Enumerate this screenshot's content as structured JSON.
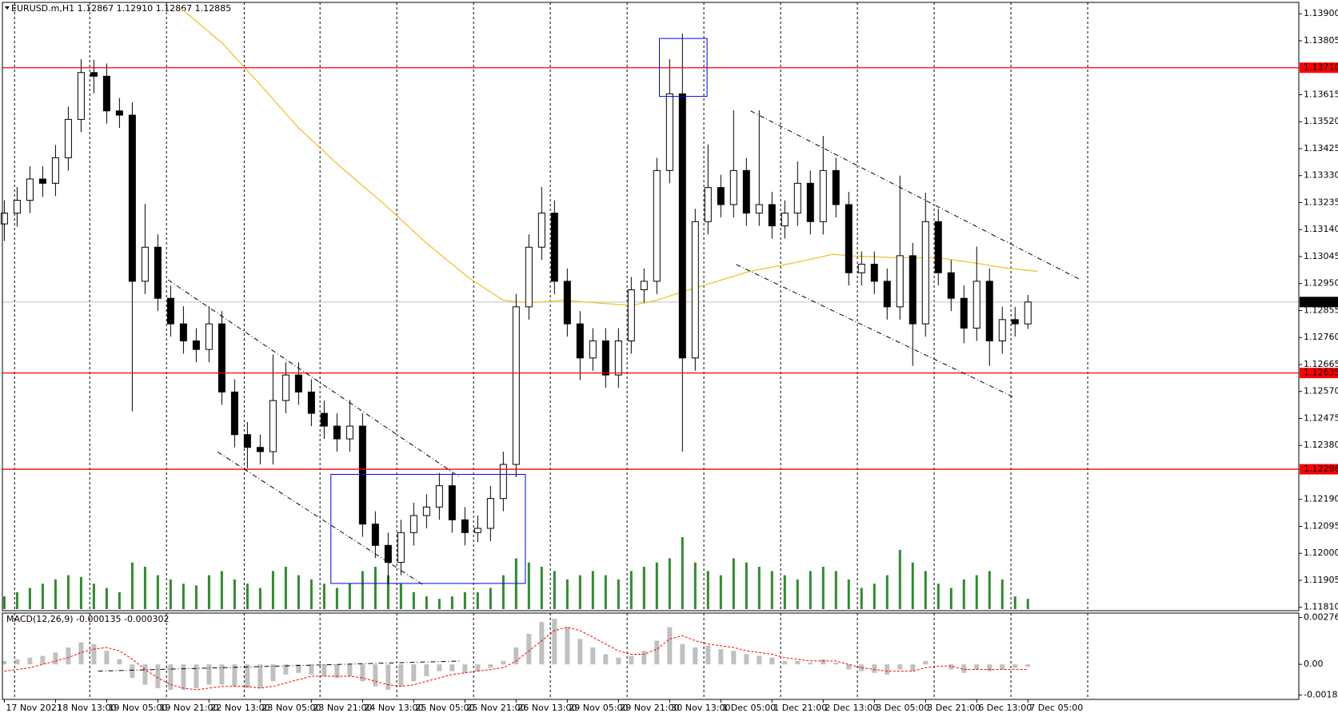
{
  "chart_data": [
    {
      "type": "candlestick",
      "title": "EURUSD.m,H1  1.12867 1.12910 1.12867 1.12885",
      "x": [
        0,
        4,
        8,
        12,
        16,
        20,
        24,
        28,
        32,
        36,
        40,
        44,
        48,
        52,
        56,
        60,
        64,
        68,
        72,
        76,
        80,
        84,
        88,
        92,
        96,
        100,
        104,
        108,
        112,
        116,
        120,
        124,
        128,
        132,
        136,
        140,
        144,
        148,
        152,
        156,
        160,
        164,
        168,
        172,
        176,
        180,
        184,
        188,
        192,
        196,
        200,
        204,
        208,
        212,
        216,
        220,
        224,
        228,
        232,
        236,
        240,
        244,
        248,
        252,
        256,
        260,
        264,
        268,
        272,
        276,
        280,
        284,
        288,
        292,
        296,
        300,
        304,
        308,
        312,
        316,
        320
      ],
      "open": [
        1.1316,
        1.13198,
        1.13243,
        1.13318,
        1.13303,
        1.13393,
        1.13528,
        1.13693,
        1.1368,
        1.13558,
        1.13543,
        1.12958,
        1.13078,
        1.12898,
        1.12808,
        1.12748,
        1.12718,
        1.12808,
        1.12568,
        1.12418,
        1.12373,
        1.12358,
        1.12538,
        1.12628,
        1.12568,
        1.12493,
        1.12448,
        1.12403,
        1.12448,
        1.12103,
        1.12028,
        1.11968,
        1.12073,
        1.12133,
        1.12163,
        1.12238,
        1.12118,
        1.12073,
        1.12088,
        1.12193,
        1.12313,
        1.12868,
        1.13078,
        1.13198,
        1.12958,
        1.12808,
        1.12688,
        1.12748,
        1.12628,
        1.12748,
        1.12928,
        1.12958,
        1.13348,
        1.13618,
        1.12688,
        1.13168,
        1.13288,
        1.13228,
        1.13348,
        1.13198,
        1.13228,
        1.13153,
        1.13198,
        1.13303,
        1.13168,
        1.13348,
        1.13228,
        1.12988,
        1.13018,
        1.12958,
        1.12868,
        1.13048,
        1.12808,
        1.13168,
        1.12988,
        1.12898,
        1.12793,
        1.12958,
        1.12748,
        1.12823,
        1.12808
      ],
      "high": [
        1.13243,
        1.1329,
        1.13363,
        1.13363,
        1.13438,
        1.13573,
        1.1374,
        1.13738,
        1.13725,
        1.13603,
        1.13588,
        1.1323,
        1.13123,
        1.12943,
        1.1287,
        1.12793,
        1.1287,
        1.12853,
        1.12613,
        1.12463,
        1.12418,
        1.127,
        1.12673,
        1.12673,
        1.12613,
        1.12538,
        1.12493,
        1.1254,
        1.12493,
        1.12148,
        1.12073,
        1.12118,
        1.12178,
        1.12208,
        1.12283,
        1.12283,
        1.12163,
        1.12133,
        1.12238,
        1.12358,
        1.12913,
        1.13123,
        1.1329,
        1.13243,
        1.13003,
        1.12853,
        1.12793,
        1.12793,
        1.12793,
        1.12973,
        1.13003,
        1.13393,
        1.1374,
        1.1383,
        1.13213,
        1.1344,
        1.13333,
        1.1356,
        1.13393,
        1.1356,
        1.13273,
        1.13243,
        1.1338,
        1.13348,
        1.1347,
        1.13393,
        1.13273,
        1.13063,
        1.13063,
        1.13003,
        1.1333,
        1.13093,
        1.1327,
        1.13213,
        1.13033,
        1.12943,
        1.1308,
        1.13003,
        1.12868,
        1.12868,
        1.1291
      ],
      "low": [
        1.131,
        1.1315,
        1.13198,
        1.13255,
        1.13258,
        1.13348,
        1.13483,
        1.1362,
        1.13513,
        1.13498,
        1.125,
        1.12913,
        1.12853,
        1.12763,
        1.12703,
        1.12673,
        1.12673,
        1.12523,
        1.12373,
        1.123,
        1.12313,
        1.12313,
        1.12493,
        1.12523,
        1.12448,
        1.12403,
        1.12358,
        1.12358,
        1.12058,
        1.11983,
        1.1189,
        1.11923,
        1.12028,
        1.12088,
        1.12118,
        1.12073,
        1.12028,
        1.1204,
        1.12043,
        1.12148,
        1.12268,
        1.12823,
        1.13033,
        1.12913,
        1.12763,
        1.1261,
        1.12643,
        1.12583,
        1.12583,
        1.12703,
        1.12883,
        1.12913,
        1.13303,
        1.12358,
        1.12643,
        1.13123,
        1.13183,
        1.13183,
        1.13153,
        1.13153,
        1.13108,
        1.13108,
        1.13153,
        1.13123,
        1.13123,
        1.13183,
        1.12943,
        1.12943,
        1.12913,
        1.12823,
        1.12823,
        1.1266,
        1.12763,
        1.12943,
        1.12853,
        1.1274,
        1.12748,
        1.1266,
        1.12703,
        1.12763,
        1.1279
      ],
      "close": [
        1.13198,
        1.13243,
        1.13318,
        1.13303,
        1.13393,
        1.13528,
        1.13693,
        1.1368,
        1.13558,
        1.13543,
        1.12958,
        1.13078,
        1.12898,
        1.12808,
        1.12748,
        1.12718,
        1.12808,
        1.12568,
        1.12418,
        1.12373,
        1.12358,
        1.12538,
        1.12628,
        1.12568,
        1.12493,
        1.12448,
        1.12403,
        1.12448,
        1.12103,
        1.12028,
        1.11968,
        1.12073,
        1.12133,
        1.12163,
        1.12238,
        1.12118,
        1.12073,
        1.12088,
        1.12193,
        1.12313,
        1.12868,
        1.13078,
        1.13198,
        1.12958,
        1.12808,
        1.12688,
        1.12748,
        1.12628,
        1.12748,
        1.12928,
        1.12958,
        1.13348,
        1.13618,
        1.12688,
        1.13168,
        1.13288,
        1.13228,
        1.13348,
        1.13198,
        1.13228,
        1.13153,
        1.13198,
        1.13303,
        1.13168,
        1.13348,
        1.13228,
        1.12988,
        1.13018,
        1.12958,
        1.12868,
        1.13048,
        1.12808,
        1.13168,
        1.12988,
        1.12898,
        1.12793,
        1.12958,
        1.12748,
        1.12823,
        1.12808,
        1.12885
      ],
      "bull_color": "#ffffff",
      "bear_color": "#000000",
      "volume": [
        15,
        20,
        25,
        30,
        35,
        40,
        38,
        30,
        25,
        20,
        55,
        50,
        40,
        35,
        30,
        28,
        40,
        45,
        35,
        30,
        25,
        45,
        50,
        40,
        35,
        30,
        25,
        30,
        45,
        50,
        40,
        30,
        20,
        15,
        12,
        15,
        20,
        20,
        25,
        40,
        60,
        55,
        50,
        45,
        35,
        40,
        45,
        40,
        35,
        45,
        50,
        55,
        60,
        85,
        55,
        45,
        40,
        60,
        55,
        50,
        45,
        40,
        35,
        45,
        50,
        45,
        35,
        25,
        30,
        40,
        70,
        55,
        45,
        30,
        25,
        35,
        40,
        45,
        35,
        15,
        12
      ],
      "volume_color": "#2e8b2e",
      "ma": {
        "x": [
          54.7,
          68,
          79,
          92,
          105,
          119,
          132,
          145,
          156,
          164,
          175,
          185,
          196,
          204,
          212,
          220,
          233,
          247,
          259,
          265,
          279,
          292,
          303,
          313,
          323
        ],
        "values": [
          1.13924,
          1.13798,
          1.13663,
          1.13498,
          1.13362,
          1.13227,
          1.13092,
          1.12972,
          1.12891,
          1.12882,
          1.12891,
          1.12882,
          1.12873,
          1.12891,
          1.12921,
          1.12948,
          1.12993,
          1.13023,
          1.13053,
          1.13047,
          1.13041,
          1.13041,
          1.13023,
          1.13005,
          1.12993
        ],
        "color": "#f2c230"
      },
      "hlines": [
        {
          "value": 1.1371,
          "label": "1.13710"
        },
        {
          "value": 1.12635,
          "label": "1.12635"
        },
        {
          "value": 1.12296,
          "label": "1.12296"
        }
      ],
      "hline_color": "#ff0000",
      "last_price": {
        "value": 1.12885,
        "label": "1.12885"
      },
      "trendlines": [
        {
          "x": [
            51.2,
            142.7
          ],
          "y": [
            1.12963,
            1.12266
          ]
        },
        {
          "x": [
            66.7,
            130.7
          ],
          "y": [
            1.12357,
            1.11891
          ]
        },
        {
          "x": [
            233.3,
            336
          ],
          "y": [
            1.13558,
            1.12966
          ]
        },
        {
          "x": [
            228.8,
            315.2
          ],
          "y": [
            1.13017,
            1.12552
          ]
        }
      ],
      "rectangles": [
        {
          "x": [
            102.1,
            162.9
          ],
          "y": [
            1.12278,
            1.11894
          ]
        },
        {
          "x": [
            204.8,
            219.7
          ],
          "y": [
            1.13813,
            1.13609
          ]
        }
      ],
      "rect_color": "#0000ff",
      "xlim": [
        -0.6,
        404.7
      ],
      "xticks": [
        {
          "value": 0,
          "label": "17 Nov 2021"
        },
        {
          "value": 16,
          "label": "18 Nov 13:00"
        },
        {
          "value": 32,
          "label": "19 Nov 05:00"
        },
        {
          "value": 48,
          "label": "19 Nov 21:00"
        },
        {
          "value": 64,
          "label": "22 Nov 13:00"
        },
        {
          "value": 80,
          "label": "23 Nov 05:00"
        },
        {
          "value": 96,
          "label": "23 Nov 21:00"
        },
        {
          "value": 112,
          "label": "24 Nov 13:00"
        },
        {
          "value": 128,
          "label": "25 Nov 05:00"
        },
        {
          "value": 144,
          "label": "25 Nov 21:00"
        },
        {
          "value": 160,
          "label": "26 Nov 13:00"
        },
        {
          "value": 176,
          "label": "29 Nov 05:00"
        },
        {
          "value": 192,
          "label": "29 Nov 21:00"
        },
        {
          "value": 208,
          "label": "30 Nov 13:00"
        },
        {
          "value": 224,
          "label": "1 Dec 05:00"
        },
        {
          "value": 240,
          "label": "1 Dec 21:00"
        },
        {
          "value": 256,
          "label": "2 Dec 13:00"
        },
        {
          "value": 272,
          "label": "3 Dec 05:00"
        },
        {
          "value": 288,
          "label": "3 Dec 21:00"
        },
        {
          "value": 304,
          "label": "6 Dec 13:00"
        },
        {
          "value": 320,
          "label": "7 Dec 05:00"
        }
      ],
      "xgrid": [
        3.2,
        26.7,
        50.7,
        75,
        98.7,
        122.7,
        146.7,
        170.7,
        194.7,
        218.7,
        242.7,
        266.7,
        290.7,
        314.7,
        338.7
      ],
      "ylim": [
        1.11798,
        1.1394
      ],
      "yticks": [
        {
          "value": 1.139,
          "label": "1.13900"
        },
        {
          "value": 1.13805,
          "label": "1.13805"
        },
        {
          "value": 1.13615,
          "label": "1.13615"
        },
        {
          "value": 1.1352,
          "label": "1.13520"
        },
        {
          "value": 1.13425,
          "label": "1.13425"
        },
        {
          "value": 1.1333,
          "label": "1.13330"
        },
        {
          "value": 1.13235,
          "label": "1.13235"
        },
        {
          "value": 1.1314,
          "label": "1.13140"
        },
        {
          "value": 1.13045,
          "label": "1.13045"
        },
        {
          "value": 1.1295,
          "label": "1.12950"
        },
        {
          "value": 1.12855,
          "label": "1.12855"
        },
        {
          "value": 1.1276,
          "label": "1.12760"
        },
        {
          "value": 1.12665,
          "label": "1.12665"
        },
        {
          "value": 1.1257,
          "label": "1.12570"
        },
        {
          "value": 1.12475,
          "label": "1.12475"
        },
        {
          "value": 1.1238,
          "label": "1.12380"
        },
        {
          "value": 1.1219,
          "label": "1.12190"
        },
        {
          "value": 1.12095,
          "label": "1.12095"
        },
        {
          "value": 1.12,
          "label": "1.12000"
        },
        {
          "value": 1.11905,
          "label": "1.11905"
        },
        {
          "value": 1.1181,
          "label": "1.11810"
        }
      ],
      "grid": true
    },
    {
      "type": "macd",
      "title": "MACD(12,26,9) -0.000135 -0.000302",
      "histogram": [
        0.0002,
        0.0003,
        0.0004,
        0.0005,
        0.0007,
        0.001,
        0.0013,
        0.0012,
        0.0008,
        0.0003,
        -0.0008,
        -0.0012,
        -0.0014,
        -0.0015,
        -0.0015,
        -0.0014,
        -0.0012,
        -0.0012,
        -0.0013,
        -0.0014,
        -0.0014,
        -0.001,
        -0.0006,
        -0.0005,
        -0.0006,
        -0.0007,
        -0.0008,
        -0.0007,
        -0.001,
        -0.0013,
        -0.0015,
        -0.0013,
        -0.001,
        -0.0007,
        -0.0004,
        -0.0004,
        -0.0005,
        -0.0004,
        -0.0002,
        0.0002,
        0.001,
        0.0018,
        0.0025,
        0.0027,
        0.0022,
        0.0015,
        0.001,
        0.0006,
        0.0004,
        0.0005,
        0.0008,
        0.0014,
        0.0022,
        0.0012,
        0.001,
        0.0011,
        0.0009,
        0.0008,
        0.0006,
        0.0005,
        0.0004,
        0.0002,
        0.0002,
        0.0001,
        0.0003,
        0.0001,
        -0.0003,
        -0.0004,
        -0.0005,
        -0.0006,
        -0.0003,
        -0.0004,
        0.0002,
        0,
        -0.0003,
        -0.0005,
        -0.0003,
        -0.0004,
        -0.0003,
        -0.0002,
        -0.000135
      ],
      "signal": [
        -0.0004,
        -0.0003,
        -0.0002,
        0,
        0.0002,
        0.0004,
        0.0007,
        0.0009,
        0.001,
        0.0008,
        0.0003,
        -0.0003,
        -0.0008,
        -0.0012,
        -0.0014,
        -0.0015,
        -0.0014,
        -0.0013,
        -0.0013,
        -0.0013,
        -0.0014,
        -0.0013,
        -0.0011,
        -0.0009,
        -0.0007,
        -0.0007,
        -0.0007,
        -0.0007,
        -0.0008,
        -0.001,
        -0.0012,
        -0.0013,
        -0.0012,
        -0.001,
        -0.0008,
        -0.0006,
        -0.0005,
        -0.0004,
        -0.0003,
        -0.0002,
        0.0002,
        0.0008,
        0.0014,
        0.002,
        0.0022,
        0.002,
        0.0016,
        0.0012,
        0.0008,
        0.0006,
        0.0006,
        0.0009,
        0.0015,
        0.0017,
        0.0014,
        0.0012,
        0.0011,
        0.001,
        0.0008,
        0.0007,
        0.0006,
        0.0004,
        0.0003,
        0.0002,
        0.0002,
        0.0002,
        0,
        -0.0002,
        -0.0003,
        -0.0004,
        -0.0004,
        -0.0004,
        -0.0002,
        -0.0001,
        -0.0001,
        -0.0003,
        -0.0003,
        -0.0003,
        -0.0003,
        -0.0003,
        -0.000302
      ],
      "histogram_color": "#c0c0c0",
      "signal_color": "#ff0000",
      "trendlines": [
        {
          "x": [
            29.3,
            142.7
          ],
          "y": [
            -0.0004,
            0.0002
          ]
        }
      ],
      "ylim": [
        -0.00207,
        0.00303
      ],
      "yticks": [
        0.002769,
        {
          "value": 0,
          "label": "0.00"
        },
        -0.001807
      ]
    }
  ]
}
